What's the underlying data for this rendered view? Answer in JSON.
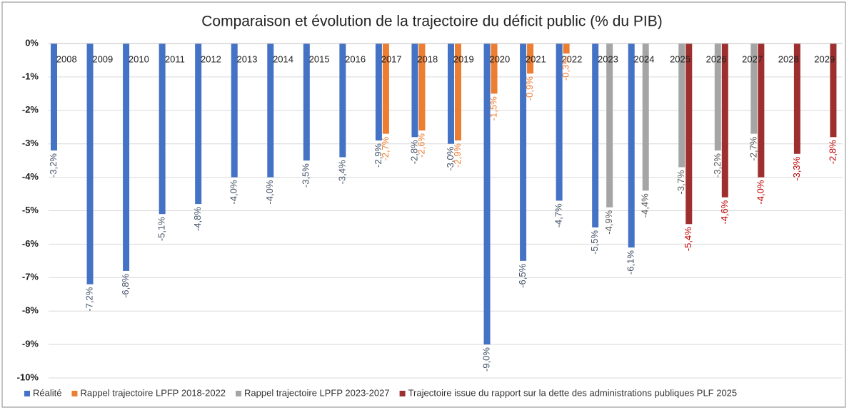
{
  "chart_data": {
    "type": "bar",
    "title": "Comparaison et évolution de la trajectoire du déficit public (% du PIB)",
    "categories": [
      "2008",
      "2009",
      "2010",
      "2011",
      "2012",
      "2013",
      "2014",
      "2015",
      "2016",
      "2017",
      "2018",
      "2019",
      "2020",
      "2021",
      "2022",
      "2023",
      "2024",
      "2025",
      "2026",
      "2027",
      "2028",
      "2029"
    ],
    "series": [
      {
        "name": "Réalité",
        "color": "#4472c4",
        "label_color": "#44546a",
        "values": [
          -3.2,
          -7.2,
          -6.8,
          -5.1,
          -4.8,
          -4.0,
          -4.0,
          -3.5,
          -3.4,
          -2.9,
          -2.8,
          -3.0,
          -9.0,
          -6.5,
          -4.7,
          -5.5,
          -6.1,
          null,
          null,
          null,
          null,
          null
        ],
        "value_labels": [
          "-3,2%",
          "-7,2%",
          "-6,8%",
          "-5,1%",
          "-4,8%",
          "-4,0%",
          "-4,0%",
          "-3,5%",
          "-3,4%",
          "-2,9%",
          "-2,8%",
          "-3,0%",
          "-9,0%",
          "-6,5%",
          "-4,7%",
          "-5,5%",
          "-6,1%",
          null,
          null,
          null,
          null,
          null
        ]
      },
      {
        "name": "Rappel trajectoire LPFP 2018-2022",
        "color": "#ed7d31",
        "label_color": "#ed7d31",
        "values": [
          null,
          null,
          null,
          null,
          null,
          null,
          null,
          null,
          null,
          -2.7,
          -2.6,
          -2.9,
          -1.5,
          -0.9,
          -0.3,
          null,
          null,
          null,
          null,
          null,
          null,
          null
        ],
        "value_labels": [
          null,
          null,
          null,
          null,
          null,
          null,
          null,
          null,
          null,
          "-2,7%",
          "-2,6%",
          "-2,9%",
          "-1,5%",
          "-0,9%",
          "-0,3%",
          null,
          null,
          null,
          null,
          null,
          null,
          null
        ]
      },
      {
        "name": "Rappel trajectoire LPFP 2023-2027",
        "color": "#a5a5a5",
        "label_color": "#595959",
        "values": [
          null,
          null,
          null,
          null,
          null,
          null,
          null,
          null,
          null,
          null,
          null,
          null,
          null,
          null,
          null,
          -4.9,
          -4.4,
          -3.7,
          -3.2,
          -2.7,
          null,
          null
        ],
        "value_labels": [
          null,
          null,
          null,
          null,
          null,
          null,
          null,
          null,
          null,
          null,
          null,
          null,
          null,
          null,
          null,
          "-4,9%",
          "-4,4%",
          "-3,7%",
          "-3,2%",
          "-2,7%",
          null,
          null
        ]
      },
      {
        "name": "Trajectoire issue du rapport sur la dette des administrations publiques PLF 2025",
        "color": "#9e2f2f",
        "label_color": "#c00000",
        "values": [
          null,
          null,
          null,
          null,
          null,
          null,
          null,
          null,
          null,
          null,
          null,
          null,
          null,
          null,
          null,
          null,
          null,
          -5.4,
          -4.6,
          -4.0,
          -3.3,
          -2.8
        ],
        "value_labels": [
          null,
          null,
          null,
          null,
          null,
          null,
          null,
          null,
          null,
          null,
          null,
          null,
          null,
          null,
          null,
          null,
          null,
          "-5,4%",
          "-4,6%",
          "-4,0%",
          "-3,3%",
          "-2,8%"
        ]
      }
    ],
    "ylim": [
      -10,
      0
    ],
    "yticks": [
      {
        "value": 0,
        "label": "0%"
      },
      {
        "value": -1,
        "label": "-1%"
      },
      {
        "value": -2,
        "label": "-2%"
      },
      {
        "value": -3,
        "label": "-3%"
      },
      {
        "value": -4,
        "label": "-4%"
      },
      {
        "value": -5,
        "label": "-5%"
      },
      {
        "value": -6,
        "label": "-6%"
      },
      {
        "value": -7,
        "label": "-7%"
      },
      {
        "value": -8,
        "label": "-8%"
      },
      {
        "value": -9,
        "label": "-9%"
      },
      {
        "value": -10,
        "label": "-10%"
      }
    ],
    "grid": true,
    "legend": "bottom"
  }
}
